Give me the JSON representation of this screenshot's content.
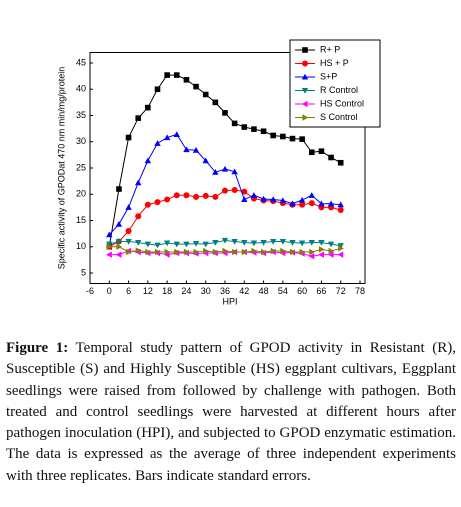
{
  "chart_data": {
    "type": "line",
    "x_label": "HPI",
    "y_label": "Specific activity of GPODat 470 nm min/mg/protein",
    "x": [
      0,
      3,
      6,
      9,
      12,
      15,
      18,
      21,
      24,
      27,
      30,
      33,
      36,
      39,
      42,
      45,
      48,
      51,
      54,
      57,
      60,
      63,
      66,
      69,
      72
    ],
    "series": [
      {
        "name": "R+ P",
        "color": "#000000",
        "marker": "square",
        "values": [
          10,
          21,
          30.8,
          34.5,
          36.5,
          40,
          42.7,
          42.7,
          41.8,
          40.5,
          39,
          37.5,
          35.5,
          33.5,
          32.8,
          32.4,
          32,
          31.2,
          31,
          30.6,
          30.5,
          28,
          28.2,
          27,
          26
        ]
      },
      {
        "name": "HS + P",
        "color": "#ff0000",
        "marker": "circle",
        "values": [
          10,
          11,
          13,
          15.8,
          18,
          18.5,
          19,
          19.8,
          19.8,
          19.5,
          19.7,
          19.5,
          20.7,
          20.8,
          20.5,
          19.2,
          18.8,
          18.7,
          18.3,
          18,
          18,
          18.3,
          17.5,
          17.5,
          17
        ]
      },
      {
        "name": "S+P",
        "color": "#0000ff",
        "marker": "triangle-up",
        "values": [
          12.3,
          14.3,
          17.5,
          22.2,
          26.4,
          29.7,
          30.8,
          31.4,
          28.5,
          28.4,
          26.4,
          24.2,
          24.8,
          24.3,
          19,
          19.8,
          19.1,
          19,
          18.8,
          18.2,
          18.9,
          19.8,
          18.2,
          18.2,
          18
        ]
      },
      {
        "name": "R Control",
        "color": "#008080",
        "marker": "triangle-down",
        "values": [
          10.5,
          11,
          11,
          10.8,
          10.5,
          10.3,
          10.7,
          10.5,
          10.5,
          10.6,
          10.5,
          10.8,
          11.2,
          11,
          10.8,
          10.7,
          10.8,
          11,
          11,
          10.8,
          10.7,
          10.8,
          10.8,
          10.5,
          10.2
        ]
      },
      {
        "name": "HS Control",
        "color": "#ff00ff",
        "marker": "triangle-left",
        "values": [
          8.5,
          8.5,
          9.2,
          9,
          8.8,
          8.8,
          8.5,
          8.8,
          8.8,
          8.7,
          8.8,
          8.8,
          8.8,
          9,
          9,
          8.9,
          8.8,
          9,
          8.8,
          8.9,
          8.7,
          8.2,
          8.5,
          8.5,
          8.5
        ]
      },
      {
        "name": "S Control",
        "color": "#808000",
        "marker": "triangle-right",
        "values": [
          10,
          10,
          9,
          9.3,
          9,
          9,
          9,
          9,
          9,
          9,
          9.2,
          9,
          9.2,
          9,
          9,
          9.2,
          9,
          9.2,
          9.2,
          9,
          9,
          9,
          9.5,
          9.2,
          9.7
        ]
      }
    ],
    "xlim": [
      -6,
      78
    ],
    "xticks": [
      -6,
      0,
      6,
      12,
      18,
      24,
      30,
      36,
      42,
      48,
      54,
      60,
      66,
      72,
      78
    ],
    "ylim": [
      3,
      47
    ],
    "yticks": [
      5,
      10,
      15,
      20,
      25,
      30,
      35,
      40,
      45
    ],
    "legend": "upper right"
  },
  "caption": {
    "label": "Figure 1:",
    "text": "Temporal study pattern of GPOD activity in Resistant (R), Susceptible (S) and Highly Susceptible (HS) eggplant cultivars, Eggplant seedlings were raised from followed by challenge with pathogen. Both treated and control seedlings were harvested at different hours after pathogen inoculation (HPI), and subjected to GPOD enzymatic estimation. The data is expressed as the average of three independent experiments with three replicates. Bars indicate standard errors."
  }
}
